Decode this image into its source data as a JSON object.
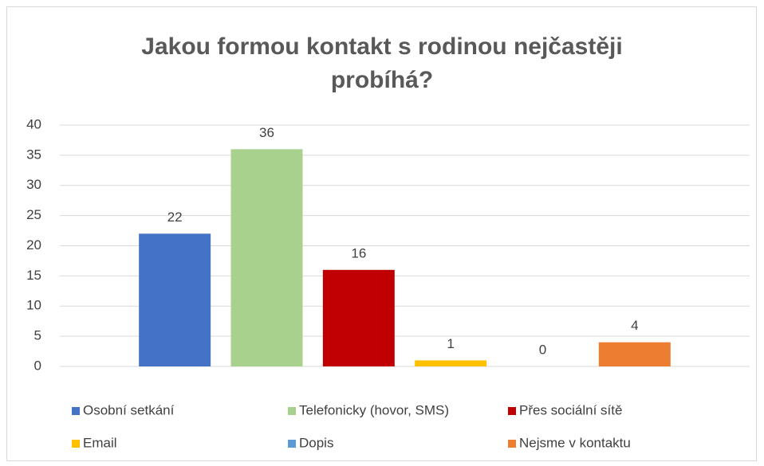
{
  "chart_data": {
    "type": "bar",
    "title": "Jakou formou kontakt s rodinou nejčastěji probíhá?",
    "categories": [
      null
    ],
    "series": [
      {
        "name": "Osobní setkání",
        "color": "#4472c4",
        "values": [
          22
        ]
      },
      {
        "name": "Telefonicky (hovor, SMS)",
        "color": "#a9d18e",
        "values": [
          36
        ]
      },
      {
        "name": "Přes sociální sítě",
        "color": "#c00000",
        "values": [
          16
        ]
      },
      {
        "name": "Email",
        "color": "#ffc000",
        "values": [
          1
        ]
      },
      {
        "name": "Dopis",
        "color": "#5b9bd5",
        "values": [
          0
        ]
      },
      {
        "name": "Nejsme v kontaktu",
        "color": "#ed7d31",
        "values": [
          4
        ]
      }
    ],
    "ylim": [
      0,
      40
    ],
    "yticks": [
      0,
      5,
      10,
      15,
      20,
      25,
      30,
      35,
      40
    ],
    "grid": true,
    "legend": "bottom"
  }
}
